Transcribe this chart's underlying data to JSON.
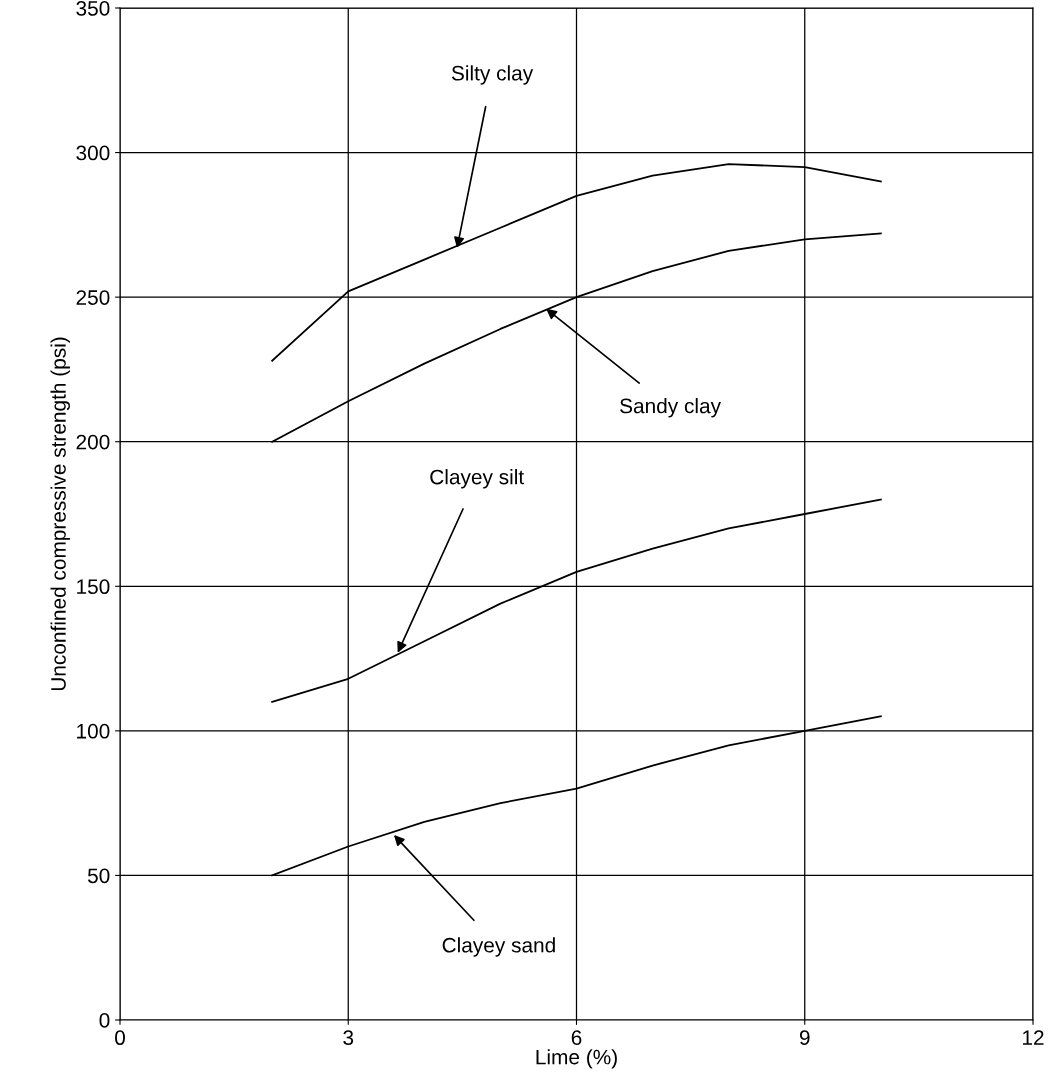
{
  "chart_data": {
    "type": "line",
    "xlabel": "Lime (%)",
    "ylabel": "Unconfined compressive strength (psi)",
    "x": [
      2,
      3,
      4,
      5,
      6,
      7,
      8,
      9,
      10
    ],
    "series": [
      {
        "color": "#000000",
        "values": [
          228,
          252,
          263,
          274,
          285,
          292,
          296,
          295,
          290
        ]
      },
      {
        "color": "#000000",
        "values": [
          200,
          214,
          227,
          239,
          250,
          259,
          266,
          270,
          272
        ]
      },
      {
        "color": "#000000",
        "values": [
          110,
          118,
          131,
          144,
          155,
          163,
          170,
          175,
          180
        ]
      },
      {
        "color": "#000000",
        "values": [
          50,
          60,
          68.5,
          75,
          80,
          88,
          95,
          100,
          105
        ]
      }
    ],
    "annotations": [
      {
        "text": "Silty clay",
        "x": 4.43,
        "y": 267
      },
      {
        "text": "Sandy clay",
        "x": 5.6,
        "y": 246
      },
      {
        "text": "Clayey silt",
        "x": 3.65,
        "y": 127
      },
      {
        "text": "Clayey sand",
        "x": 3.6,
        "y": 64
      }
    ],
    "xlim": [
      0,
      12
    ],
    "xticks": [
      0,
      3,
      6,
      9,
      12
    ],
    "ylim": [
      0,
      350
    ],
    "yticks": [
      0,
      50,
      100,
      150,
      200,
      250,
      300,
      350
    ],
    "grid": true,
    "marker": "none",
    "line_style": "solid"
  }
}
